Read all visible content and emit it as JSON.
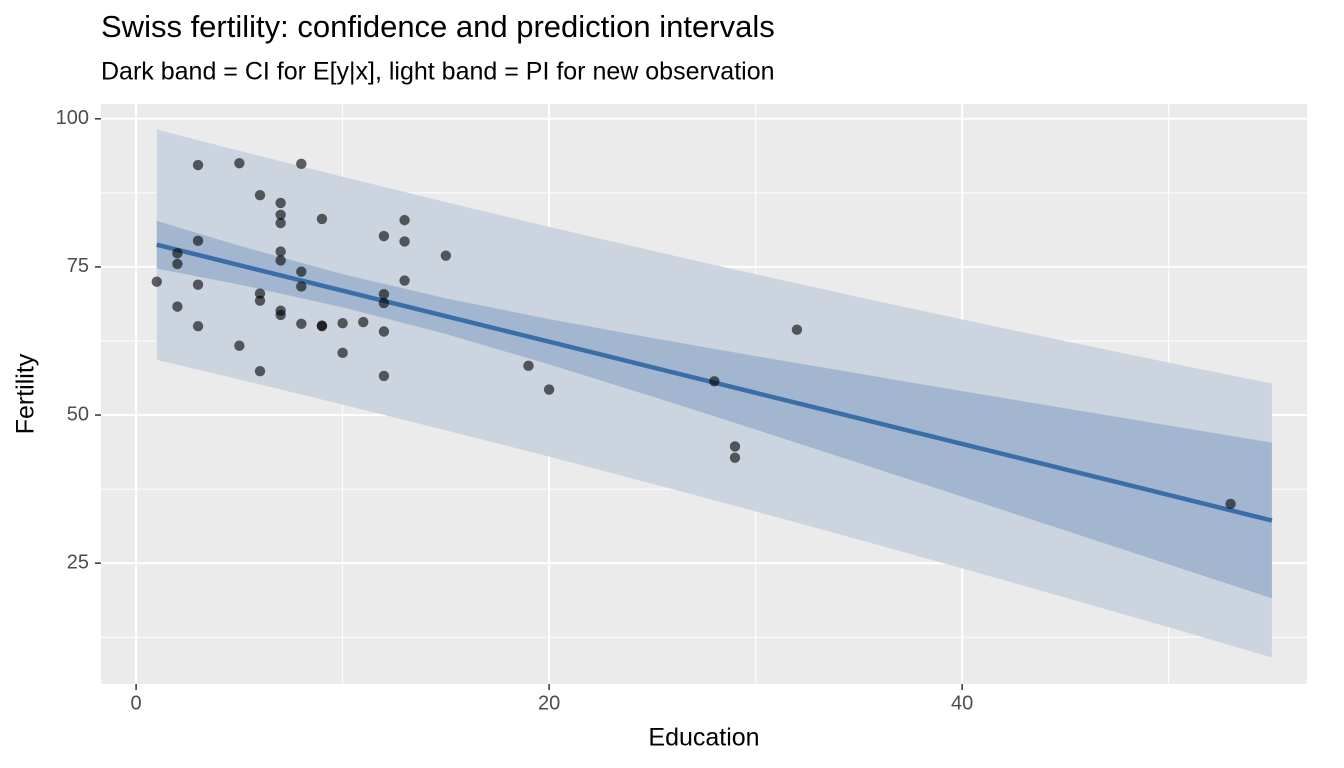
{
  "chart_data": {
    "type": "scatter",
    "title": "Swiss fertility: confidence and prediction intervals",
    "subtitle": "Dark band = CI for E[y|x], light band = PI for new observation",
    "x_label": "Education",
    "y_label": "Fertility",
    "xlim": [
      -1.7,
      56.7
    ],
    "ylim": [
      4.6,
      102.5
    ],
    "xticks": [
      0,
      20,
      40
    ],
    "yticks": [
      25,
      50,
      75,
      100
    ],
    "xminor": [
      10,
      30,
      50
    ],
    "yminor": [
      12.5,
      37.5,
      62.5,
      87.5
    ],
    "grid": true,
    "points": {
      "color": "#000000",
      "x": [
        12,
        9,
        5,
        7,
        15,
        7,
        7,
        8,
        7,
        13,
        6,
        12,
        7,
        12,
        5,
        2,
        8,
        28,
        20,
        9,
        10,
        3,
        12,
        6,
        1,
        8,
        3,
        10,
        19,
        8,
        2,
        6,
        2,
        6,
        3,
        9,
        3,
        13,
        12,
        11,
        13,
        32,
        7,
        7,
        53,
        29,
        29
      ],
      "values": [
        80.2,
        83.1,
        92.5,
        85.8,
        76.9,
        76.1,
        83.8,
        92.4,
        82.4,
        82.9,
        87.1,
        64.1,
        66.9,
        68.9,
        61.7,
        68.3,
        71.7,
        55.7,
        54.3,
        65.1,
        65.5,
        65.0,
        56.6,
        57.4,
        72.5,
        74.2,
        72.0,
        60.5,
        58.3,
        65.4,
        75.5,
        69.3,
        77.3,
        70.5,
        79.4,
        65.0,
        92.2,
        79.3,
        70.4,
        65.7,
        72.7,
        64.4,
        77.6,
        67.6,
        35.0,
        44.7,
        42.8
      ]
    },
    "fit": {
      "color": "#3b6ea8",
      "ci_color": "#a2b7cf",
      "pi_color": "#cbd4df",
      "x": [
        1,
        5,
        10,
        15,
        20,
        25,
        30,
        35,
        40,
        45,
        50,
        55
      ],
      "values": [
        78.75,
        75.3,
        70.99,
        66.68,
        62.37,
        58.06,
        53.75,
        49.44,
        45.13,
        40.82,
        36.51,
        32.2
      ],
      "ci_lower": [
        74.73,
        72.02,
        68.2,
        63.67,
        58.55,
        53.12,
        47.55,
        41.9,
        36.22,
        30.51,
        24.79,
        19.06
      ],
      "ci_upper": [
        82.77,
        78.58,
        73.78,
        69.69,
        66.19,
        63.0,
        59.95,
        56.98,
        54.04,
        51.13,
        48.23,
        45.34
      ],
      "pi_lower": [
        59.31,
        56.0,
        51.76,
        47.42,
        42.97,
        38.4,
        33.74,
        28.97,
        24.12,
        19.18,
        14.17,
        9.08
      ],
      "pi_upper": [
        98.19,
        94.6,
        90.22,
        85.94,
        81.77,
        77.72,
        73.76,
        69.91,
        66.14,
        62.46,
        58.85,
        55.32
      ]
    }
  }
}
